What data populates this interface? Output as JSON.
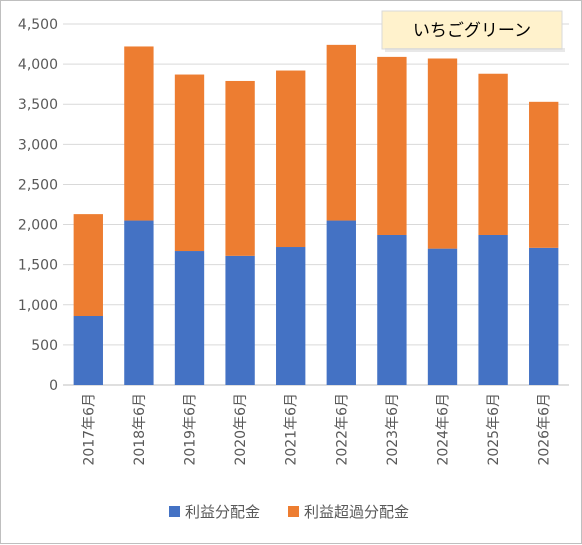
{
  "chart_data": {
    "type": "bar",
    "stacked": true,
    "title": "いちごグリーン",
    "categories": [
      "2017年6月",
      "2018年6月",
      "2019年6月",
      "2020年6月",
      "2021年6月",
      "2022年6月",
      "2023年6月",
      "2024年6月",
      "2025年6月",
      "2026年6月"
    ],
    "series": [
      {
        "name": "利益分配金",
        "color": "#4472c4",
        "values": [
          860,
          2050,
          1670,
          1610,
          1720,
          2050,
          1870,
          1700,
          1870,
          1710
        ]
      },
      {
        "name": "利益超過分配金",
        "color": "#ed7d31",
        "values": [
          1270,
          2170,
          2200,
          2180,
          2200,
          2190,
          2220,
          2370,
          2010,
          1820
        ]
      }
    ],
    "ylim": [
      0,
      4500
    ],
    "yticks": [
      "0",
      "500",
      "1,000",
      "1,500",
      "2,000",
      "2,500",
      "3,000",
      "3,500",
      "4,000",
      "4,500"
    ],
    "grid": true,
    "legend_position": "bottom",
    "title_box_fill": "#fff2cc"
  }
}
